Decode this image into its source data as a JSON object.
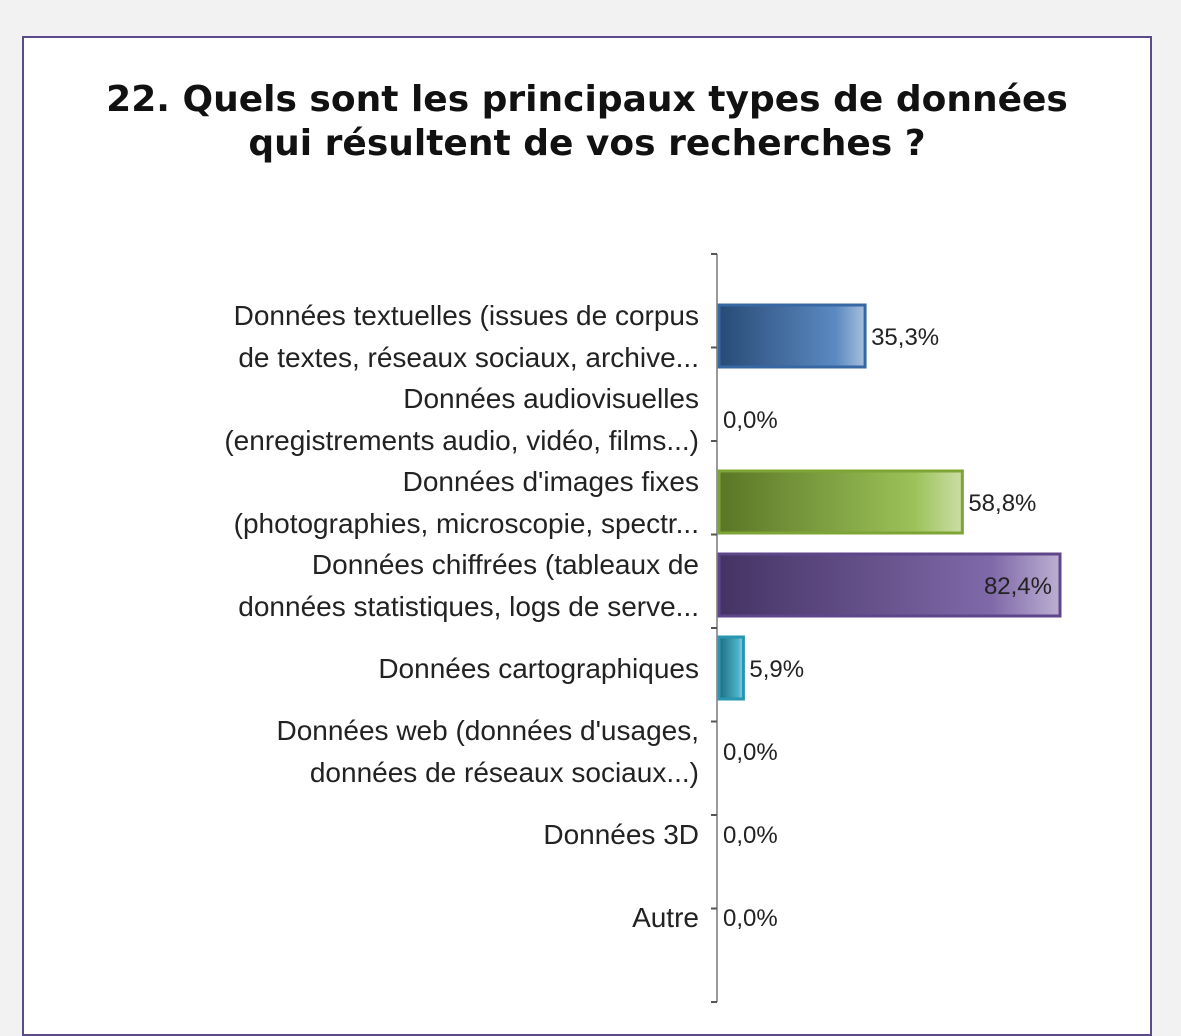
{
  "chart_data": {
    "type": "bar",
    "orientation": "horizontal",
    "title": "22. Quels sont les principaux types de données qui résultent de vos recherches ?",
    "title_lines": [
      "22. Quels sont les principaux types de données",
      "qui résultent de vos recherches ?"
    ],
    "categories": [
      [
        "Données textuelles (issues de corpus",
        "de textes, réseaux sociaux, archive..."
      ],
      [
        "Données audiovisuelles",
        "(enregistrements audio, vidéo, films...)"
      ],
      [
        "Données d'images fixes",
        "(photographies, microscopie, spectr..."
      ],
      [
        "Données chiffrées (tableaux de",
        "données statistiques, logs de serve..."
      ],
      [
        "Données cartographiques"
      ],
      [
        "Données web (données d'usages,",
        "données de réseaux sociaux...)"
      ],
      [
        "Données 3D"
      ],
      [
        "Autre"
      ]
    ],
    "values": [
      35.3,
      0.0,
      58.8,
      82.4,
      5.9,
      0.0,
      0.0,
      0.0
    ],
    "value_labels": [
      "35,3%",
      "0,0%",
      "58,8%",
      "82,4%",
      "5,9%",
      "0,0%",
      "0,0%",
      "0,0%"
    ],
    "colors": [
      "#3e74b6",
      "#3e74b6",
      "#8bb63a",
      "#6a4e9a",
      "#2ea6c4",
      "#3e74b6",
      "#3e74b6",
      "#3e74b6"
    ],
    "xlim": [
      0,
      100
    ],
    "xlabel": "",
    "ylabel": "",
    "grid": false,
    "legend": "none"
  },
  "colors": {
    "frame_border": "#5b4a8c",
    "axis": "#9a9a9a"
  }
}
